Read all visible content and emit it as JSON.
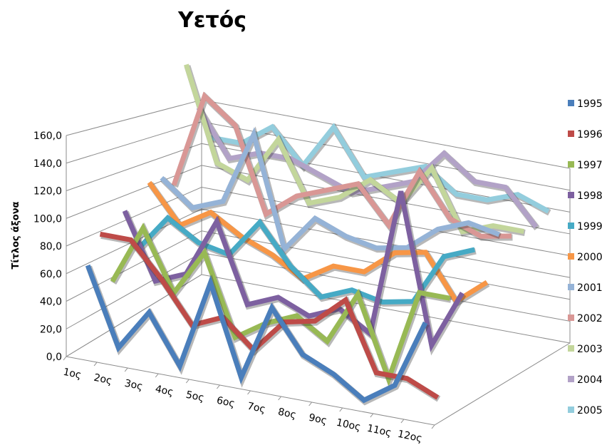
{
  "chart_data": {
    "type": "line",
    "view": "3d",
    "title": "Υετός",
    "ylabel": "Τίτλος άξονα",
    "ylim": [
      0,
      160
    ],
    "yticks": [
      "0,0",
      "20,0",
      "40,0",
      "60,0",
      "80,0",
      "100,0",
      "120,0",
      "140,0",
      "160,0"
    ],
    "categories": [
      "1ος",
      "2ος",
      "3ος",
      "4ος",
      "5ος",
      "6ος",
      "7ος",
      "8ος",
      "9ος",
      "10ος",
      "11ος",
      "12ος"
    ],
    "legend_position": "right",
    "series": [
      {
        "name": "1995",
        "color": "#4a7ebb",
        "values": [
          66,
          10,
          40,
          5,
          70,
          5,
          60,
          30,
          20,
          5,
          20,
          70
        ]
      },
      {
        "name": "1996",
        "color": "#be4b48",
        "values": [
          85,
          85,
          60,
          30,
          40,
          20,
          45,
          50,
          70,
          20,
          20,
          10
        ]
      },
      {
        "name": "1997",
        "color": "#98b954",
        "values": [
          45,
          90,
          45,
          80,
          20,
          35,
          45,
          30,
          70,
          10,
          80,
          80
        ]
      },
      {
        "name": "1998",
        "color": "#7d60a0",
        "values": [
          95,
          45,
          55,
          100,
          40,
          50,
          40,
          50,
          35,
          150,
          35,
          80
        ]
      },
      {
        "name": "1999",
        "color": "#46aac5",
        "values": [
          60,
          90,
          75,
          70,
          100,
          70,
          50,
          60,
          55,
          60,
          100,
          110
        ]
      },
      {
        "name": "2000",
        "color": "#f79646",
        "values": [
          110,
          80,
          95,
          80,
          70,
          55,
          70,
          70,
          90,
          95,
          60,
          80
        ]
      },
      {
        "name": "2001",
        "color": "#95b3d7",
        "values": [
          110,
          90,
          100,
          160,
          70,
          100,
          90,
          85,
          90,
          110,
          120,
          115
        ]
      },
      {
        "name": "2002",
        "color": "#d99795",
        "values": [
          100,
          180,
          160,
          90,
          110,
          120,
          130,
          100,
          150,
          115,
          105,
          110
        ]
      },
      {
        "name": "2003",
        "color": "#c3d69b",
        "values": [
          200,
          120,
          110,
          150,
          100,
          110,
          130,
          115,
          150,
          100,
          110,
          110
        ]
      },
      {
        "name": "2004",
        "color": "#b2a2c7",
        "values": [
          160,
          120,
          130,
          130,
          120,
          110,
          120,
          130,
          160,
          140,
          140,
          110
        ]
      },
      {
        "name": "2005",
        "color": "#93cddd",
        "values": [
          130,
          130,
          150,
          120,
          160,
          120,
          130,
          140,
          120,
          120,
          130,
          120
        ]
      }
    ]
  }
}
